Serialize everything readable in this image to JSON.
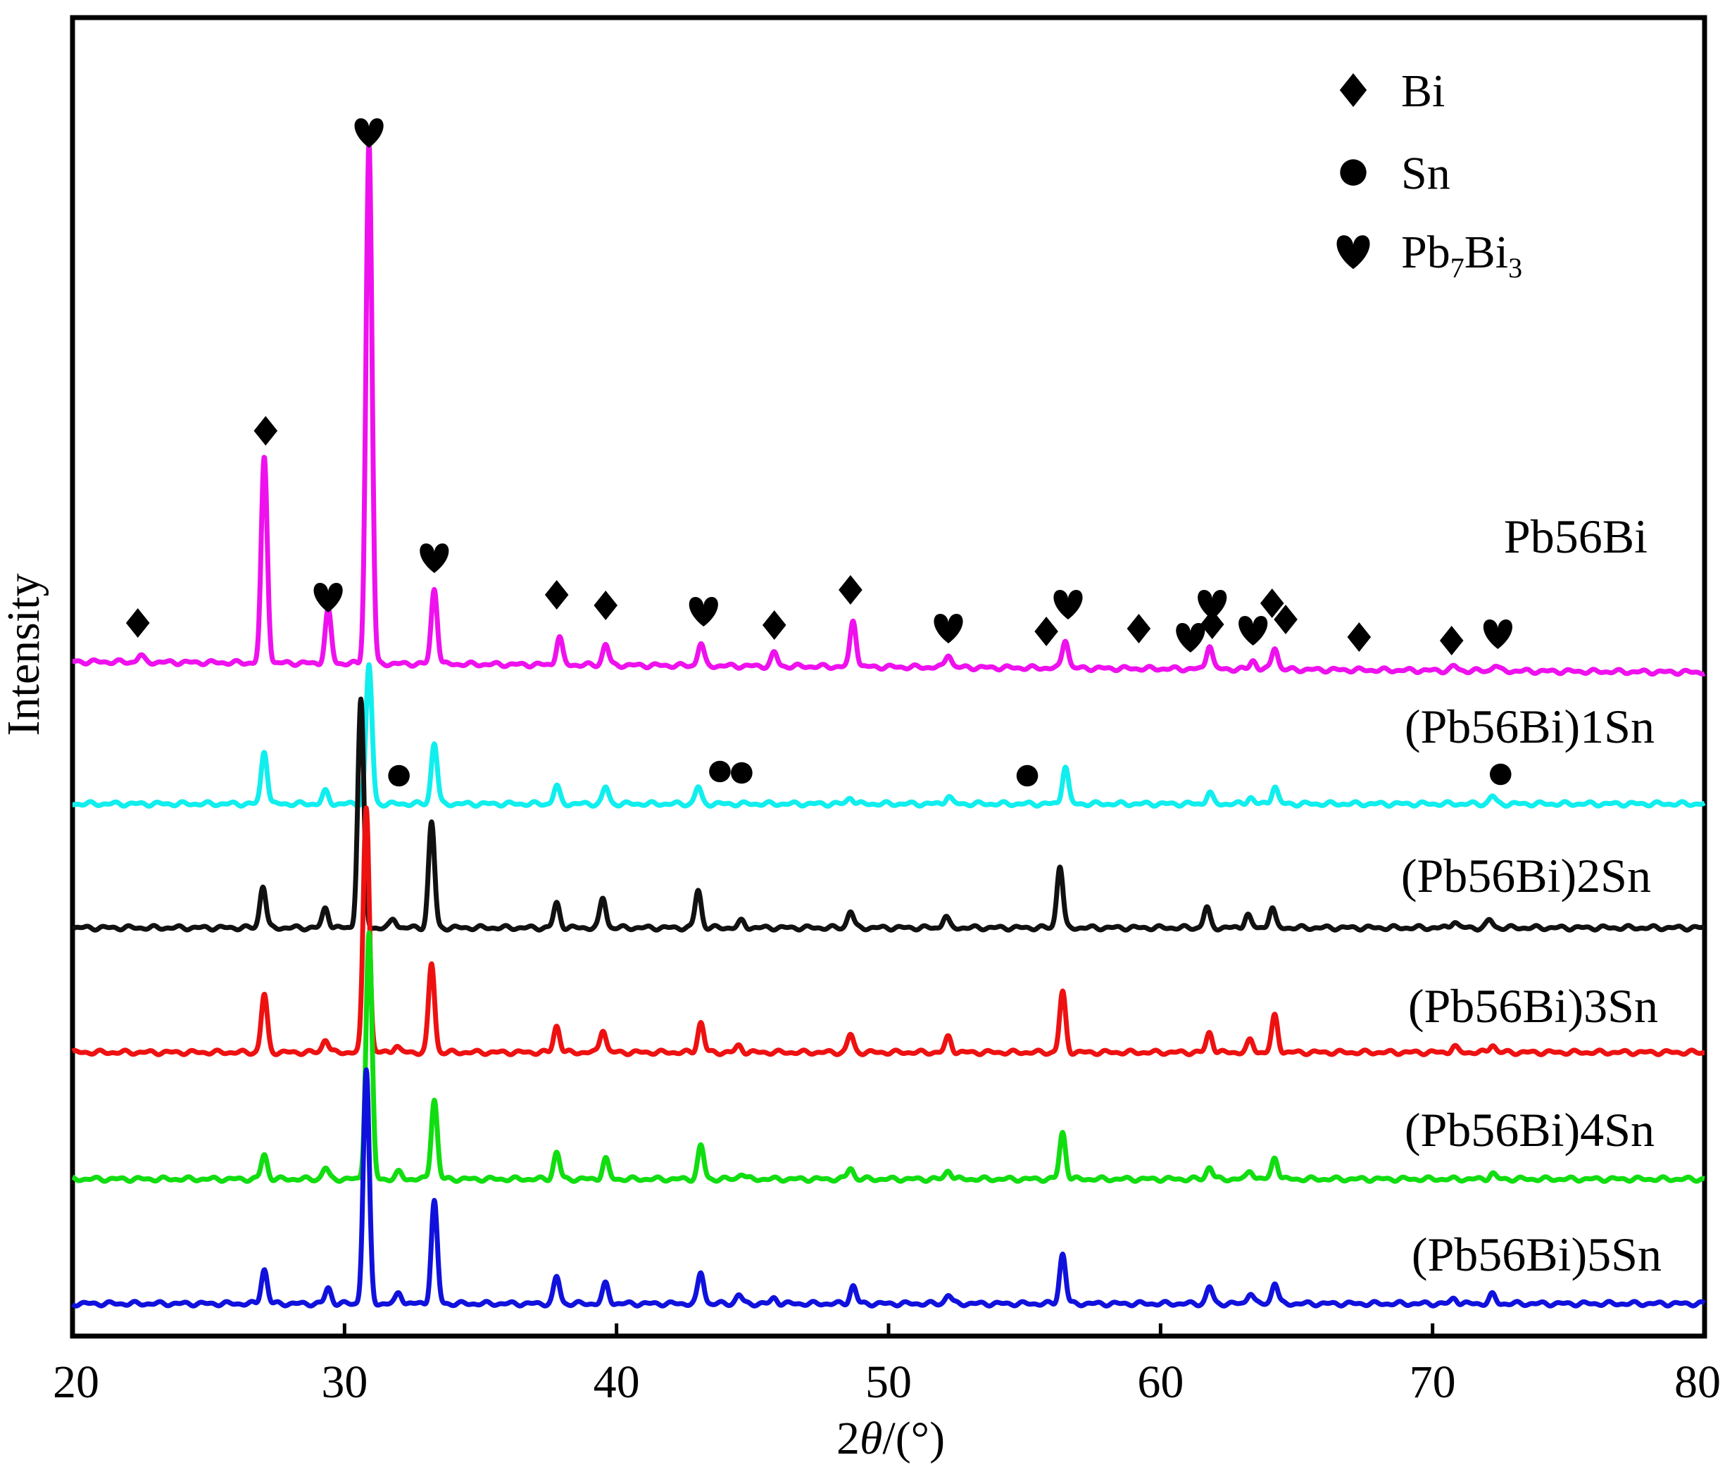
{
  "chart_data": {
    "type": "line",
    "xlabel": "2θ/(°)",
    "xlabel_parts": {
      "prefix": "2",
      "theta": "θ",
      "suffix": "/(°)"
    },
    "ylabel": "Intensity",
    "xlim": [
      20,
      80
    ],
    "x_ticks": [
      "20",
      "30",
      "40",
      "50",
      "60",
      "70",
      "80"
    ],
    "grid": false,
    "legend": {
      "position": "top-right",
      "entries": [
        {
          "marker": "diamond",
          "label": "Bi",
          "label_parts": [
            {
              "t": "Bi",
              "sub": false
            }
          ]
        },
        {
          "marker": "circle",
          "label": "Sn",
          "label_parts": [
            {
              "t": "Sn",
              "sub": false
            }
          ]
        },
        {
          "marker": "heart",
          "label": "Pb7Bi3",
          "label_parts": [
            {
              "t": "Pb",
              "sub": false
            },
            {
              "t": "7",
              "sub": true
            },
            {
              "t": "Bi",
              "sub": false
            },
            {
              "t": "3",
              "sub": true
            }
          ]
        }
      ]
    },
    "series": [
      {
        "name": "Pb56Bi",
        "color": "#ee11ee",
        "peaks": [
          [
            22.5,
            6
          ],
          [
            27.05,
            185
          ],
          [
            29.4,
            48
          ],
          [
            30.9,
            470
          ],
          [
            33.3,
            68
          ],
          [
            37.9,
            25
          ],
          [
            39.6,
            19
          ],
          [
            43.1,
            20
          ],
          [
            45.8,
            12
          ],
          [
            48.7,
            42
          ],
          [
            52.2,
            12
          ],
          [
            56.5,
            26
          ],
          [
            61.8,
            22
          ],
          [
            63.4,
            8
          ],
          [
            64.2,
            20
          ],
          [
            70.8,
            4
          ],
          [
            72.3,
            5
          ]
        ]
      },
      {
        "name": "(Pb56Bi)1Sn",
        "color": "#11eeee",
        "peaks": [
          [
            27.05,
            48
          ],
          [
            29.3,
            11
          ],
          [
            30.9,
            125
          ],
          [
            33.3,
            55
          ],
          [
            37.8,
            16
          ],
          [
            39.6,
            15
          ],
          [
            43.0,
            15
          ],
          [
            48.6,
            6
          ],
          [
            52.2,
            7
          ],
          [
            56.5,
            34
          ],
          [
            61.8,
            10
          ],
          [
            63.3,
            6
          ],
          [
            64.2,
            16
          ],
          [
            72.2,
            7
          ]
        ]
      },
      {
        "name": "(Pb56Bi)2Sn",
        "color": "#111111",
        "peaks": [
          [
            27.0,
            38
          ],
          [
            29.3,
            18
          ],
          [
            30.6,
            205
          ],
          [
            31.8,
            8
          ],
          [
            33.2,
            95
          ],
          [
            37.8,
            22
          ],
          [
            39.5,
            27
          ],
          [
            43.0,
            34
          ],
          [
            44.6,
            6
          ],
          [
            48.6,
            15
          ],
          [
            52.1,
            10
          ],
          [
            56.3,
            56
          ],
          [
            61.7,
            18
          ],
          [
            63.2,
            12
          ],
          [
            64.1,
            18
          ],
          [
            70.8,
            6
          ],
          [
            72.1,
            7
          ]
        ]
      },
      {
        "name": "(Pb56Bi)3Sn",
        "color": "#ee1111",
        "peaks": [
          [
            27.05,
            52
          ],
          [
            29.3,
            12
          ],
          [
            30.8,
            222
          ],
          [
            31.9,
            6
          ],
          [
            33.2,
            80
          ],
          [
            37.8,
            24
          ],
          [
            39.5,
            21
          ],
          [
            43.1,
            27
          ],
          [
            44.5,
            6
          ],
          [
            48.6,
            16
          ],
          [
            52.2,
            14
          ],
          [
            56.4,
            54
          ],
          [
            61.8,
            18
          ],
          [
            63.3,
            11
          ],
          [
            64.2,
            33
          ],
          [
            70.8,
            5
          ],
          [
            72.2,
            7
          ]
        ]
      },
      {
        "name": "(Pb56Bi)4Sn",
        "color": "#11dd11",
        "peaks": [
          [
            27.05,
            22
          ],
          [
            29.3,
            10
          ],
          [
            30.9,
            222
          ],
          [
            32.0,
            6
          ],
          [
            33.3,
            72
          ],
          [
            37.8,
            24
          ],
          [
            39.6,
            18
          ],
          [
            43.1,
            30
          ],
          [
            44.6,
            5
          ],
          [
            48.6,
            10
          ],
          [
            52.2,
            8
          ],
          [
            56.4,
            42
          ],
          [
            61.8,
            11
          ],
          [
            63.3,
            8
          ],
          [
            64.2,
            20
          ],
          [
            72.2,
            5
          ]
        ]
      },
      {
        "name": "(Pb56Bi)5Sn",
        "color": "#1111dd",
        "peaks": [
          [
            27.05,
            31
          ],
          [
            29.4,
            14
          ],
          [
            30.8,
            210
          ],
          [
            32.0,
            10
          ],
          [
            33.3,
            92
          ],
          [
            37.8,
            24
          ],
          [
            39.6,
            18
          ],
          [
            43.1,
            28
          ],
          [
            44.5,
            8
          ],
          [
            45.8,
            5
          ],
          [
            48.7,
            16
          ],
          [
            52.2,
            8
          ],
          [
            56.4,
            45
          ],
          [
            61.8,
            15
          ],
          [
            63.3,
            10
          ],
          [
            64.2,
            19
          ],
          [
            70.8,
            5
          ],
          [
            72.2,
            8
          ]
        ]
      }
    ],
    "phase_markers": {
      "Bi": [
        22.4,
        27.1,
        37.8,
        39.6,
        45.8,
        48.6,
        55.8,
        59.2,
        61.9,
        64.1,
        64.6,
        67.3,
        70.7
      ],
      "Sn": [
        32.0,
        43.8,
        44.6,
        55.1,
        72.5
      ],
      "Pb7Bi3": [
        30.9,
        29.4,
        33.3,
        43.2,
        52.2,
        56.6,
        61.9,
        61.1,
        63.4,
        72.4
      ]
    }
  }
}
